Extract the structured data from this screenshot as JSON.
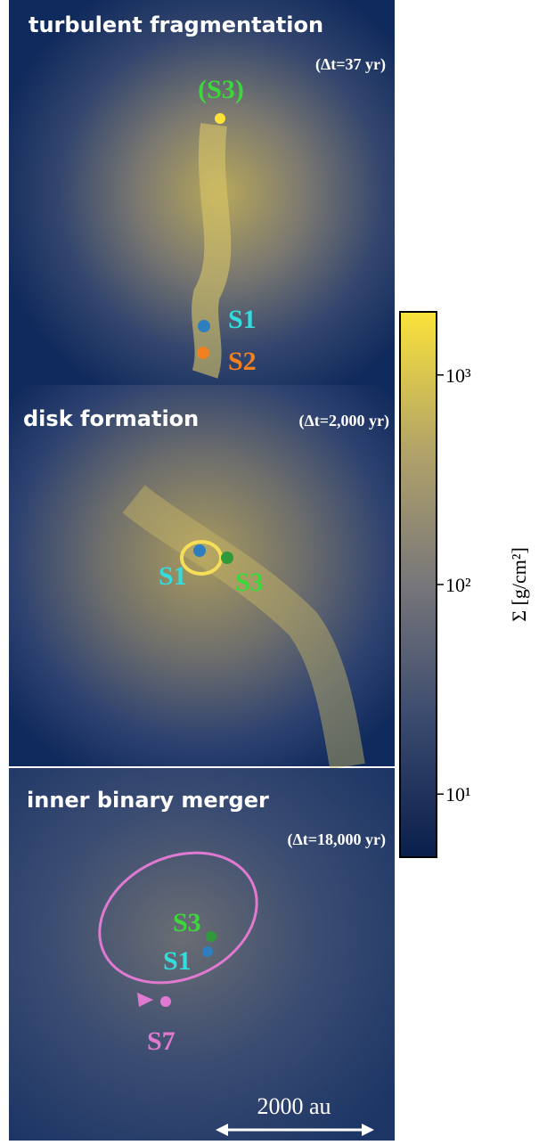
{
  "panels": [
    {
      "title": "turbulent fragmentation",
      "time": "(Δt=37 yr)",
      "labels": [
        "(S3)",
        "S1",
        "S2"
      ]
    },
    {
      "title": "disk formation",
      "time": "(Δt=2,000 yr)",
      "labels": [
        "S1",
        "S3"
      ]
    },
    {
      "title": "inner binary merger",
      "time": "(Δt=18,000 yr)",
      "labels": [
        "S3",
        "S1",
        "S7"
      ]
    }
  ],
  "scale_bar": "2000 au",
  "colorbar": {
    "label": "Σ [g/cm²]",
    "log": true,
    "lim": [
      5,
      2000
    ],
    "ticks": [
      {
        "value": 10,
        "label": "10¹"
      },
      {
        "value": 100,
        "label": "10²"
      },
      {
        "value": 1000,
        "label": "10³"
      }
    ]
  }
}
